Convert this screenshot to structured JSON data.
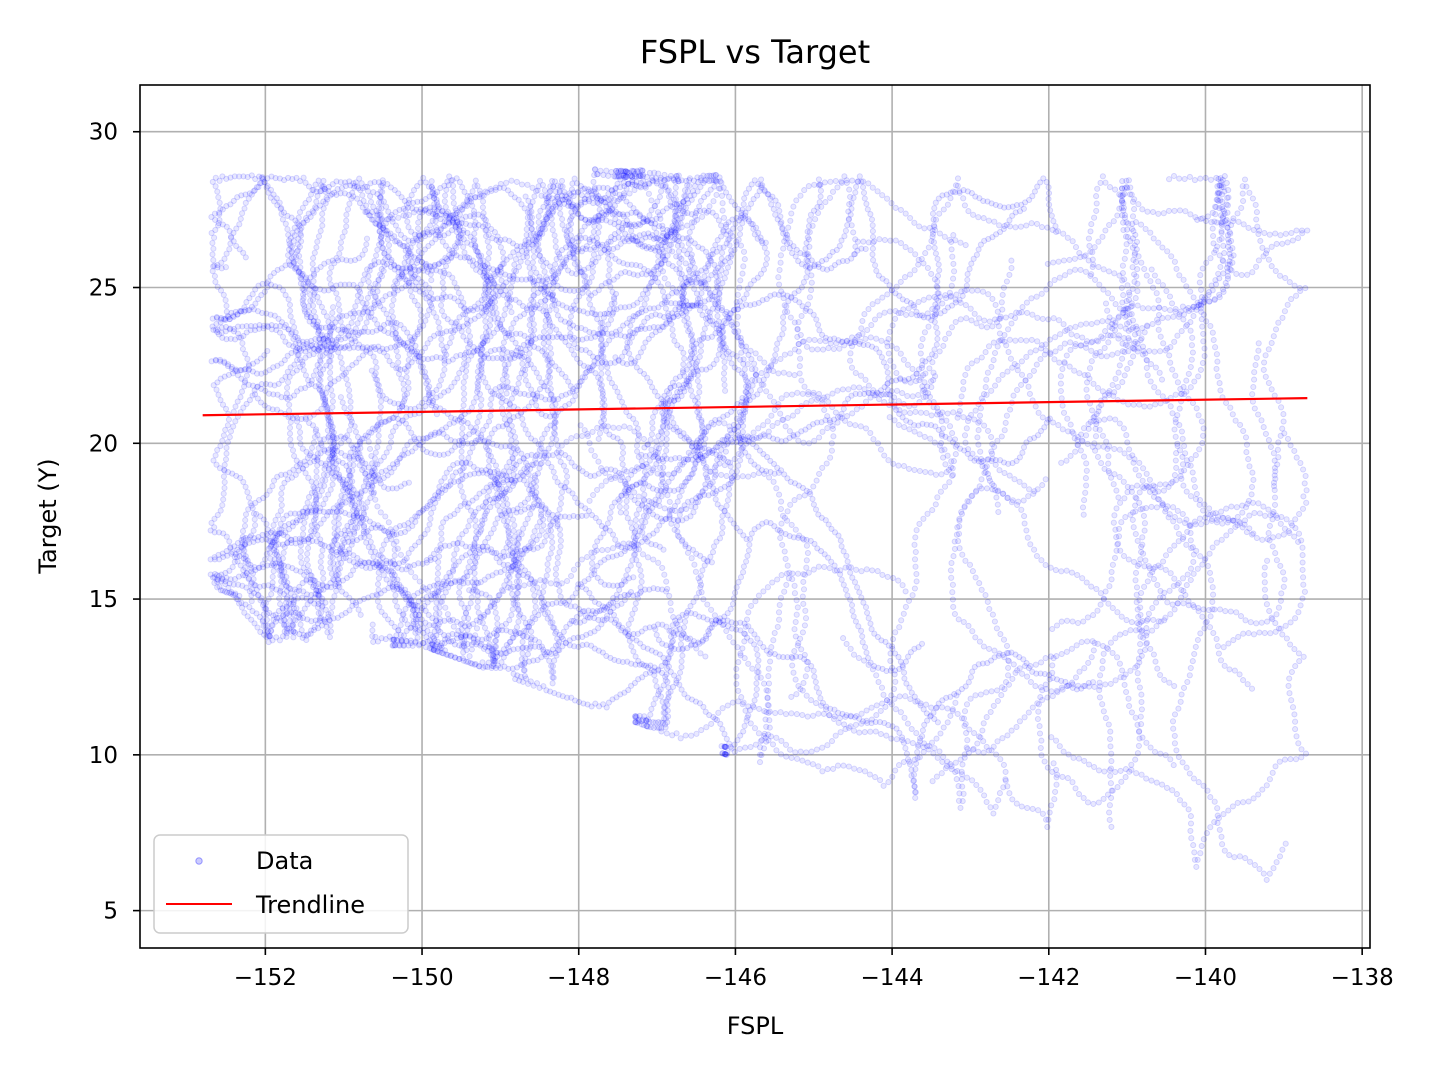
{
  "chart_data": {
    "type": "scatter",
    "title": "FSPL vs Target",
    "xlabel": "FSPL",
    "ylabel": "Target (Y)",
    "xlim": [
      -153.6,
      -137.9
    ],
    "ylim": [
      3.8,
      31.5
    ],
    "x_ticks": [
      -152,
      -150,
      -148,
      -146,
      -144,
      -142,
      -140,
      -138
    ],
    "x_tick_labels": [
      "−152",
      "−150",
      "−148",
      "−146",
      "−144",
      "−142",
      "−140",
      "−138"
    ],
    "y_ticks": [
      5,
      10,
      15,
      20,
      25,
      30
    ],
    "y_tick_labels": [
      "5",
      "10",
      "15",
      "20",
      "25",
      "30"
    ],
    "grid": true,
    "legend_position": "lower-left",
    "series": [
      {
        "name": "Data",
        "kind": "scatter",
        "color": "#0000ff",
        "alpha": 0.15,
        "x_range": [
          -152.8,
          -138.7
        ],
        "y_range": [
          5.0,
          30.3
        ],
        "dense_region": "x -152.5 to -146, y 12 to 28",
        "sparse_region": "x -146 to -138.7, y 5 to 28"
      },
      {
        "name": "Trendline",
        "kind": "line",
        "color": "#ff0000",
        "x": [
          -152.8,
          -138.7
        ],
        "y": [
          20.9,
          21.45
        ]
      }
    ]
  }
}
